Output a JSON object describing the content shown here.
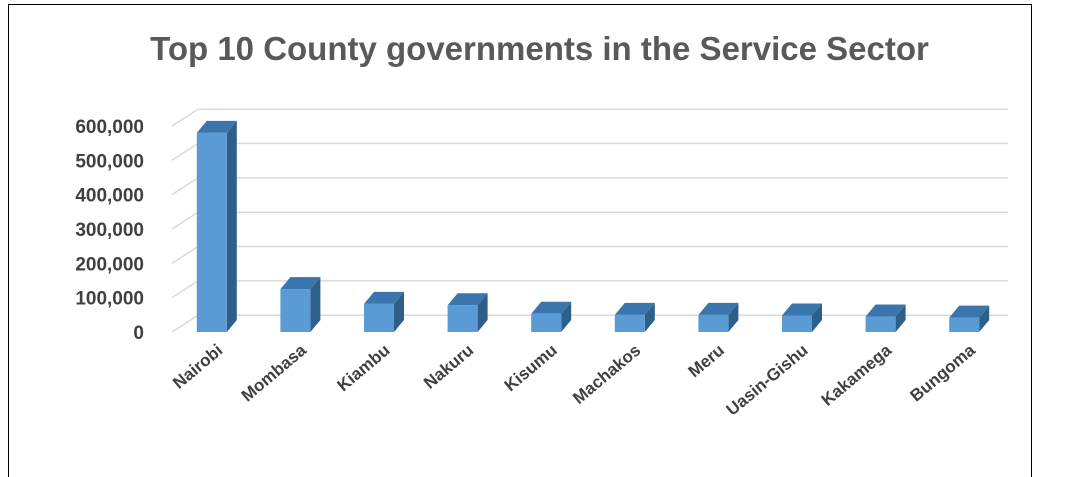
{
  "chart_data": {
    "type": "bar",
    "title": "Top 10 County governments in the Service Sector",
    "categories": [
      "Nairobi",
      "Mombasa",
      "Kiambu",
      "Nakuru",
      "Kisumu",
      "Machakos",
      "Meru",
      "Uasin-Gishu",
      "Kakamega",
      "Bungoma"
    ],
    "values": [
      580000,
      125000,
      82000,
      78000,
      53000,
      50000,
      50000,
      48000,
      45000,
      42000
    ],
    "ylim": [
      0,
      600000
    ],
    "yticks": [
      "0",
      "100,000",
      "200,000",
      "300,000",
      "400,000",
      "500,000",
      "600,000"
    ],
    "xlabel": "",
    "ylabel": "",
    "grid": true,
    "bar_color": "#5b9bd5",
    "bar_side_color": "#2e5f8a",
    "bar_top_color": "#3a75ad"
  }
}
